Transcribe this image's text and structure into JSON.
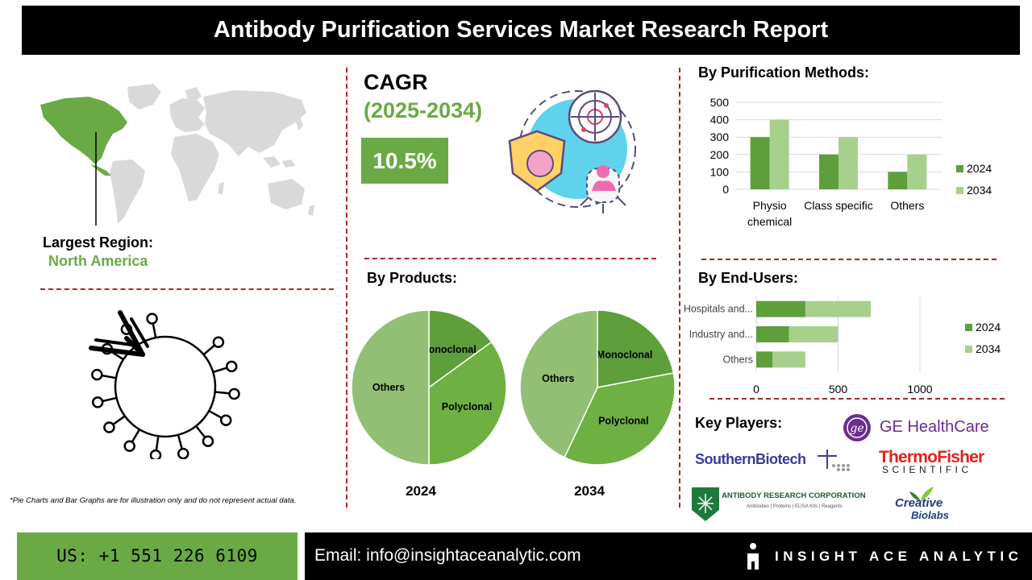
{
  "header": {
    "title": "Antibody Purification Services Market Research Report"
  },
  "cagr": {
    "label": "CAGR",
    "years": "(2025-2034)",
    "value": "10.5%"
  },
  "region": {
    "label": "Largest Region:",
    "value": "North America"
  },
  "sections": {
    "methods": "By Purification Methods:",
    "products": "By Products:",
    "end_users": "By End-Users:",
    "key_players": "Key Players:"
  },
  "disclaimer": "*Pie Charts and Bar Graphs are for illustration only and do not represent actual data.",
  "colors": {
    "accent": "#6aaa44",
    "series_2024": "#5e9e3b",
    "series_2034": "#a8d08d",
    "divider": "#b22222"
  },
  "players": {
    "ge": "GE HealthCare",
    "southern": "SouthernBiotech",
    "thermo_1": "ThermoFisher",
    "thermo_2": "SCIENTIFIC",
    "arc": "ANTIBODY RESEARCH CORPORATION",
    "arc_sub": "Antibodies | Proteins | ELISA Kits | Reagents",
    "creative_1": "Creative",
    "creative_2": "Biolabs"
  },
  "footer": {
    "phone": "US: +1 551 226 6109",
    "email": "Email: info@insightaceanalytic.com",
    "brand": "INSIGHT ACE ANALYTIC"
  },
  "chart_data": [
    {
      "type": "bar",
      "title": "By Purification Methods:",
      "categories": [
        "Physio chemical",
        "Class specific",
        "Others"
      ],
      "category_lines": [
        [
          "Physio",
          "chemical"
        ],
        [
          "Class specific"
        ],
        [
          "Others"
        ]
      ],
      "series": [
        {
          "name": "2024",
          "values": [
            300,
            200,
            100
          ]
        },
        {
          "name": "2034",
          "values": [
            400,
            300,
            200
          ]
        }
      ],
      "ylim": [
        0,
        500
      ],
      "yticks": [
        0,
        100,
        200,
        300,
        400,
        500
      ],
      "grid": true,
      "legend": "right"
    },
    {
      "type": "pie",
      "label": "2024",
      "slices": [
        {
          "name": "Monoclonal",
          "value": 15
        },
        {
          "name": "Polyclonal",
          "value": 35
        },
        {
          "name": "Others",
          "value": 50
        }
      ]
    },
    {
      "type": "pie",
      "label": "2034",
      "slices": [
        {
          "name": "Monoclonal",
          "value": 22
        },
        {
          "name": "Polyclonal",
          "value": 35
        },
        {
          "name": "Others",
          "value": 43
        }
      ]
    },
    {
      "type": "bar",
      "orientation": "horizontal",
      "stacked": true,
      "title": "By End-Users:",
      "categories": [
        "Hospitals and...",
        "Industry and...",
        "Others"
      ],
      "series": [
        {
          "name": "2024",
          "values": [
            300,
            200,
            100
          ]
        },
        {
          "name": "2034",
          "values": [
            400,
            300,
            200
          ]
        }
      ],
      "xlim": [
        0,
        1000
      ],
      "xticks": [
        0,
        500,
        1000
      ],
      "grid": true,
      "legend": "right"
    }
  ]
}
